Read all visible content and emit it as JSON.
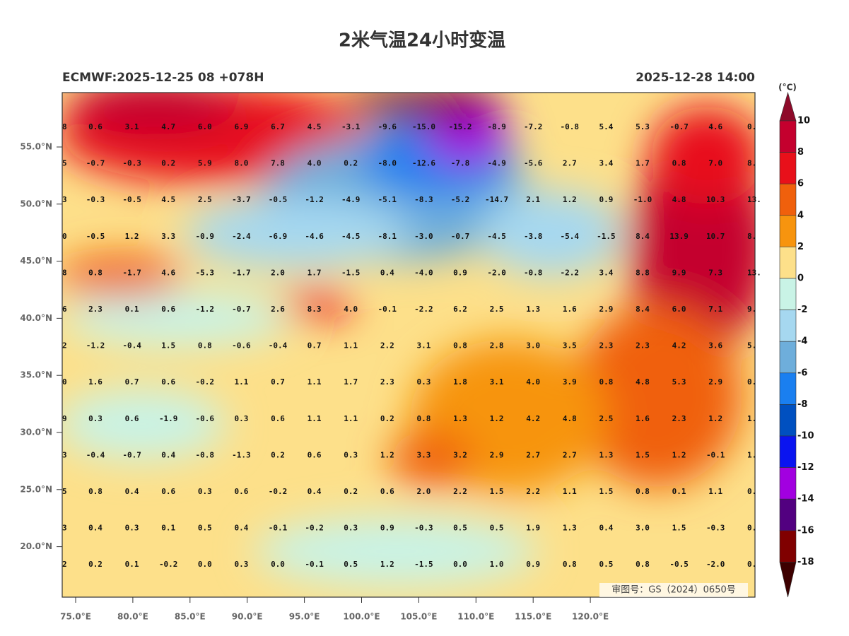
{
  "title": "2米气温24小时变温",
  "subtitle_left": "ECMWF:2025-12-25 08 +078H",
  "subtitle_right": "2025-12-28 14:00",
  "lat_labels": [
    "55.0°N",
    "50.0°N",
    "45.0°N",
    "40.0°N",
    "35.0°N",
    "30.0°N",
    "25.0°N",
    "20.0°N"
  ],
  "lon_labels": [
    "75.0°E",
    "80.0°E",
    "85.0°E",
    "90.0°E",
    "95.0°E",
    "100.0°E",
    "105.0°E",
    "110.0°E",
    "115.0°E",
    "120.0°E"
  ],
  "grid_values": [
    [
      "8",
      "0.6",
      "3.1",
      "4.7",
      "6.0",
      "6.9",
      "6.7",
      "4.5",
      "-3.1",
      "-9.6",
      "-15.0",
      "-15.2",
      "-8.9",
      "-7.2",
      "-0.8",
      "5.4",
      "5.3",
      "-0.7",
      "4.6",
      "0."
    ],
    [
      "5",
      "-0.7",
      "-0.3",
      "0.2",
      "5.9",
      "8.0",
      "7.8",
      "4.0",
      "0.2",
      "-8.0",
      "-12.6",
      "-7.8",
      "-4.9",
      "-5.6",
      "2.7",
      "3.4",
      "1.7",
      "0.8",
      "7.0",
      "8."
    ],
    [
      "3",
      "-0.3",
      "-0.5",
      "4.5",
      "2.5",
      "-3.7",
      "-0.5",
      "-1.2",
      "-4.9",
      "-5.1",
      "-8.3",
      "-5.2",
      "-14.7",
      "2.1",
      "1.2",
      "0.9",
      "-1.0",
      "4.8",
      "10.3",
      "13."
    ],
    [
      "0",
      "-0.5",
      "1.2",
      "3.3",
      "-0.9",
      "-2.4",
      "-6.9",
      "-4.6",
      "-4.5",
      "-8.1",
      "-3.0",
      "-0.7",
      "-4.5",
      "-3.8",
      "-5.4",
      "-1.5",
      "8.4",
      "13.9",
      "10.7",
      "8."
    ],
    [
      "8",
      "0.8",
      "-1.7",
      "4.6",
      "-5.3",
      "-1.7",
      "2.0",
      "1.7",
      "-1.5",
      "0.4",
      "-4.0",
      "0.9",
      "-2.0",
      "-0.8",
      "-2.2",
      "3.4",
      "8.8",
      "9.9",
      "7.3",
      "13."
    ],
    [
      "6",
      "2.3",
      "0.1",
      "0.6",
      "-1.2",
      "-0.7",
      "2.6",
      "8.3",
      "4.0",
      "-0.1",
      "-2.2",
      "6.2",
      "2.5",
      "1.3",
      "1.6",
      "2.9",
      "8.4",
      "6.0",
      "7.1",
      "9."
    ],
    [
      "2",
      "-1.2",
      "-0.4",
      "1.5",
      "0.8",
      "-0.6",
      "-0.4",
      "0.7",
      "1.1",
      "2.2",
      "3.1",
      "0.8",
      "2.8",
      "3.0",
      "3.5",
      "2.3",
      "2.3",
      "4.2",
      "3.6",
      "5."
    ],
    [
      "0",
      "1.6",
      "0.7",
      "0.6",
      "-0.2",
      "1.1",
      "0.7",
      "1.1",
      "1.7",
      "2.3",
      "0.3",
      "1.8",
      "3.1",
      "4.0",
      "3.9",
      "0.8",
      "4.8",
      "5.3",
      "2.9",
      "0."
    ],
    [
      "9",
      "0.3",
      "0.6",
      "-1.9",
      "-0.6",
      "0.3",
      "0.6",
      "1.1",
      "1.1",
      "0.2",
      "0.8",
      "1.3",
      "1.2",
      "4.2",
      "4.8",
      "2.5",
      "1.6",
      "2.3",
      "1.2",
      "1."
    ],
    [
      "3",
      "-0.4",
      "-0.7",
      "0.4",
      "-0.8",
      "-1.3",
      "0.2",
      "0.6",
      "0.3",
      "1.2",
      "3.3",
      "3.2",
      "2.9",
      "2.7",
      "2.7",
      "1.3",
      "1.5",
      "1.2",
      "-0.1",
      "1."
    ],
    [
      "5",
      "0.8",
      "0.4",
      "0.6",
      "0.3",
      "0.6",
      "-0.2",
      "0.4",
      "0.2",
      "0.6",
      "2.0",
      "2.2",
      "1.5",
      "2.2",
      "1.1",
      "1.5",
      "0.8",
      "0.1",
      "1.1",
      "0."
    ],
    [
      "3",
      "0.4",
      "0.3",
      "0.1",
      "0.5",
      "0.4",
      "-0.1",
      "-0.2",
      "0.3",
      "0.9",
      "-0.3",
      "0.5",
      "0.5",
      "1.9",
      "1.3",
      "0.4",
      "3.0",
      "1.5",
      "-0.3",
      "0."
    ],
    [
      "2",
      "0.2",
      "0.1",
      "-0.2",
      "0.0",
      "0.3",
      "0.0",
      "-0.1",
      "0.5",
      "1.2",
      "-1.5",
      "0.0",
      "1.0",
      "0.9",
      "0.8",
      "0.5",
      "0.8",
      "-0.5",
      "-2.0",
      "0."
    ]
  ],
  "colorbar": {
    "unit": "(°C)",
    "levels": [
      10,
      8,
      6,
      4,
      2,
      0,
      -2,
      -4,
      -6,
      -8,
      -10,
      -12,
      -14,
      -16,
      -18
    ],
    "colors": [
      "#8e0a2a",
      "#c4002e",
      "#e8101a",
      "#f0600c",
      "#f7940e",
      "#fde08a",
      "#c9f3e6",
      "#a6d8f0",
      "#6eaedb",
      "#1a7ff0",
      "#0050c0",
      "#0a14f0",
      "#a200e0",
      "#520080",
      "#800000",
      "#3d0000"
    ]
  },
  "watermark": "审图号：GS（2024）0650号"
}
